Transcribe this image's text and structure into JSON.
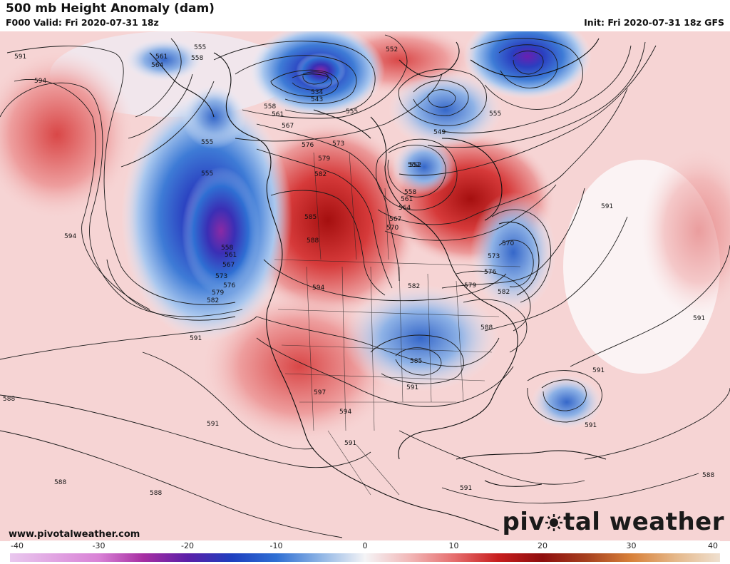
{
  "header": {
    "title": "500 mb Height Anomaly (dam)",
    "valid": "F000 Valid: Fri 2020-07-31 18z",
    "init": "Init: Fri 2020-07-31 18z GFS"
  },
  "footer": {
    "credit": "www.pivotalweather.com",
    "brand_left": "piv",
    "brand_right": "tal weather"
  },
  "colorbar": {
    "ticks": [
      "-40",
      "-30",
      "-20",
      "-10",
      "0",
      "10",
      "20",
      "30",
      "40"
    ],
    "min": -40,
    "max": 40,
    "stops": [
      {
        "v": -40,
        "c": "#e9c7ee"
      },
      {
        "v": -30,
        "c": "#d982d6"
      },
      {
        "v": -25,
        "c": "#a72fa2"
      },
      {
        "v": -20,
        "c": "#5b1fa8"
      },
      {
        "v": -15,
        "c": "#1e3fbf"
      },
      {
        "v": -10,
        "c": "#2f6fd3"
      },
      {
        "v": -5,
        "c": "#8fb5e5"
      },
      {
        "v": 0,
        "c": "#f4f4f6"
      },
      {
        "v": 5,
        "c": "#f2b8b8"
      },
      {
        "v": 10,
        "c": "#e66f6f"
      },
      {
        "v": 15,
        "c": "#c81e1e"
      },
      {
        "v": 20,
        "c": "#8e0e0e"
      },
      {
        "v": 25,
        "c": "#a7411f"
      },
      {
        "v": 30,
        "c": "#d8813a"
      },
      {
        "v": 35,
        "c": "#e5b88a"
      },
      {
        "v": 40,
        "c": "#efe0d0"
      }
    ]
  },
  "contour_labels": [
    "591",
    "594",
    "594",
    "555",
    "558",
    "561",
    "564",
    "555",
    "534",
    "543",
    "552",
    "558",
    "561",
    "555",
    "549",
    "555",
    "552",
    "567",
    "576",
    "573",
    "579",
    "582",
    "585",
    "588",
    "555",
    "558",
    "561",
    "567",
    "573",
    "576",
    "579",
    "582",
    "552",
    "558",
    "561",
    "564",
    "567",
    "570",
    "570",
    "573",
    "576",
    "579",
    "582",
    "582",
    "588",
    "594",
    "591",
    "597",
    "594",
    "585",
    "591",
    "588",
    "591",
    "591",
    "591",
    "588",
    "588",
    "591",
    "591",
    "591",
    "588",
    "591"
  ],
  "anomaly_colors": {
    "strong_positive": "#b51616",
    "positive": "#e57575",
    "weak_positive": "#f6d0d0",
    "neutral": "#f7f1f2",
    "weak_negative": "#c6d8f1",
    "negative": "#3f74d2",
    "strong_negative": "#4a1fb0"
  }
}
